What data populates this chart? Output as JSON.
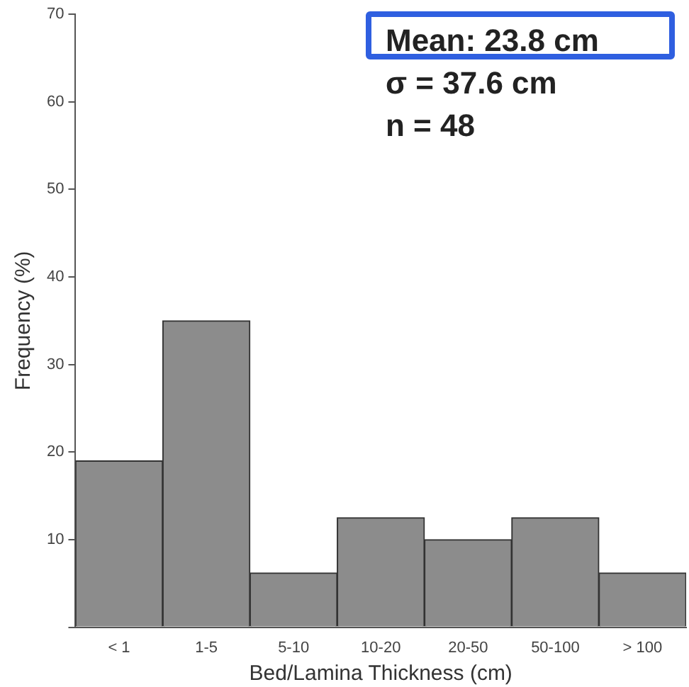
{
  "chart_data": {
    "type": "bar",
    "categories": [
      "< 1",
      "1-5",
      "5-10",
      "10-20",
      "20-50",
      "50-100",
      "> 100"
    ],
    "values": [
      19,
      35,
      6.2,
      12.5,
      10,
      12.5,
      6.2
    ],
    "color": "#8c8c8c",
    "xlabel": "Bed/Lamina Thickness (cm)",
    "ylabel": "Frequency (%)",
    "ylim": [
      0,
      70
    ],
    "yticks": [
      {
        "value": 0,
        "label": null
      },
      10,
      20,
      30,
      40,
      50,
      60,
      70
    ],
    "annotations": [
      "Mean: 23.8 cm",
      "σ = 37.6 cm",
      "n = 48"
    ]
  }
}
